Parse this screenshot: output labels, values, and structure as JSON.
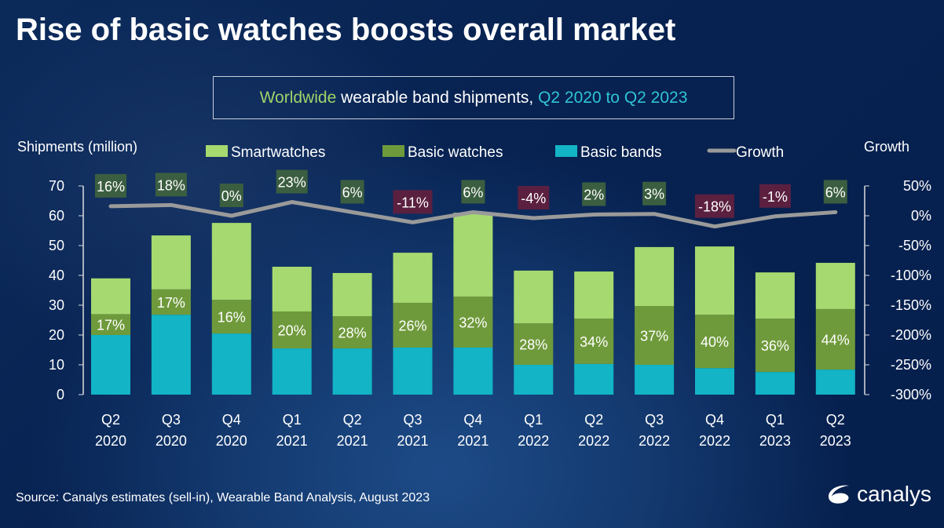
{
  "title": "Rise of basic watches boosts overall market",
  "subtitle": {
    "part1": "Worldwide",
    "part2": " wearable band shipments, ",
    "part3": "Q2 2020 to Q2 2023"
  },
  "source": "Source: Canalys estimates (sell-in), Wearable Band Analysis, August 2023",
  "logo": "canalys",
  "colors": {
    "smartwatches": "#a6d96f",
    "basic_watches": "#6f9a3b",
    "basic_bands": "#12b4c6",
    "growth": "#9a9a9a",
    "pos_box": "#3b5e40",
    "neg_box": "#5b2040"
  },
  "chart_data": {
    "type": "bar",
    "stacked": true,
    "title": "Worldwide wearable band shipments, Q2 2020 to Q2 2023",
    "ylabel": "Shipments (million)",
    "y2label": "Growth",
    "ylim": [
      0,
      70
    ],
    "y2lim": [
      -300,
      50
    ],
    "yticks": [
      "0",
      "10",
      "20",
      "30",
      "40",
      "50",
      "60",
      "70"
    ],
    "y2ticks": [
      "-300%",
      "-250%",
      "-200%",
      "-150%",
      "-100%",
      "-50%",
      "0%",
      "50%"
    ],
    "legend": [
      "Smartwatches",
      "Basic watches",
      "Basic bands",
      "Growth"
    ],
    "legend_position": "top",
    "categories": [
      [
        "Q2",
        "2020"
      ],
      [
        "Q3",
        "2020"
      ],
      [
        "Q4",
        "2020"
      ],
      [
        "Q1",
        "2021"
      ],
      [
        "Q2",
        "2021"
      ],
      [
        "Q3",
        "2021"
      ],
      [
        "Q4",
        "2021"
      ],
      [
        "Q1",
        "2022"
      ],
      [
        "Q2",
        "2022"
      ],
      [
        "Q3",
        "2022"
      ],
      [
        "Q4",
        "2022"
      ],
      [
        "Q1",
        "2023"
      ],
      [
        "Q2",
        "2023"
      ]
    ],
    "series": [
      {
        "name": "Basic bands",
        "values": [
          20,
          26.8,
          20.5,
          15.5,
          15.5,
          15.8,
          15.8,
          10,
          10.3,
          10,
          8.9,
          7.6,
          8.4
        ]
      },
      {
        "name": "Basic watches",
        "values": [
          7,
          8.5,
          11.3,
          12.4,
          10.8,
          15,
          17.1,
          13.9,
          15.2,
          19.7,
          17.9,
          17.9,
          20.3
        ]
      },
      {
        "name": "Smartwatches",
        "values": [
          12,
          18.1,
          25.8,
          15,
          14.5,
          16.8,
          28.1,
          17.7,
          15.8,
          19.8,
          22.9,
          15.5,
          15.5
        ]
      }
    ],
    "basic_watch_share_labels": [
      "17%",
      "17%",
      "16%",
      "20%",
      "28%",
      "26%",
      "32%",
      "28%",
      "34%",
      "37%",
      "40%",
      "36%",
      "44%"
    ],
    "growth": {
      "name": "Growth",
      "values": [
        16,
        18,
        0,
        23,
        6,
        -11,
        6,
        -4,
        2,
        3,
        -18,
        -1,
        6
      ],
      "labels": [
        "16%",
        "18%",
        "0%",
        "23%",
        "6%",
        "-11%",
        "6%",
        "-4%",
        "2%",
        "3%",
        "-18%",
        "-1%",
        "6%"
      ]
    }
  }
}
